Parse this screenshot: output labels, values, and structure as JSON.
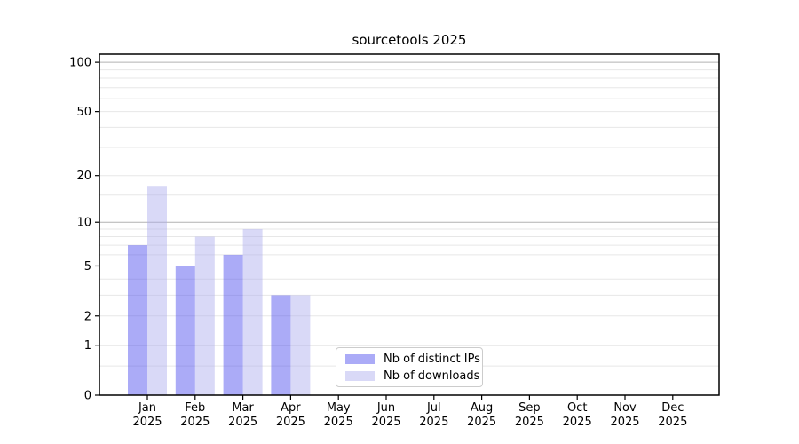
{
  "title": "sourcetools 2025",
  "chart_data": {
    "type": "bar",
    "title": "sourcetools 2025",
    "x_months": [
      "Jan",
      "Feb",
      "Mar",
      "Apr",
      "May",
      "Jun",
      "Jul",
      "Aug",
      "Sep",
      "Oct",
      "Nov",
      "Dec"
    ],
    "x_year": "2025",
    "categories": [
      "Jan 2025",
      "Feb 2025",
      "Mar 2025",
      "Apr 2025",
      "May 2025",
      "Jun 2025",
      "Jul 2025",
      "Aug 2025",
      "Sep 2025",
      "Oct 2025",
      "Nov 2025",
      "Dec 2025"
    ],
    "series": [
      {
        "name": "Nb of distinct IPs",
        "color": "rgba(68,68,238,0.45)",
        "values": [
          7,
          5,
          6,
          3,
          0,
          0,
          0,
          0,
          0,
          0,
          0,
          0
        ]
      },
      {
        "name": "Nb of downloads",
        "color": "rgba(170,170,238,0.45)",
        "values": [
          17,
          8,
          9,
          3,
          0,
          0,
          0,
          0,
          0,
          0,
          0,
          0
        ]
      }
    ],
    "y_scale": "log1p",
    "y_ticks": [
      0,
      1,
      2,
      5,
      10,
      20,
      50,
      100
    ],
    "ylim": [
      0,
      112
    ],
    "grid_major": [
      1,
      10,
      100
    ],
    "grid_minor": [
      0.5,
      2,
      3,
      4,
      5,
      6,
      7,
      8,
      9,
      15,
      20,
      30,
      40,
      50,
      60,
      70,
      80,
      90
    ],
    "grid_major_color": "#b2b2b2",
    "grid_minor_color": "#e7e7e7",
    "axis_color": "#000000",
    "legend_position": "lower center"
  }
}
